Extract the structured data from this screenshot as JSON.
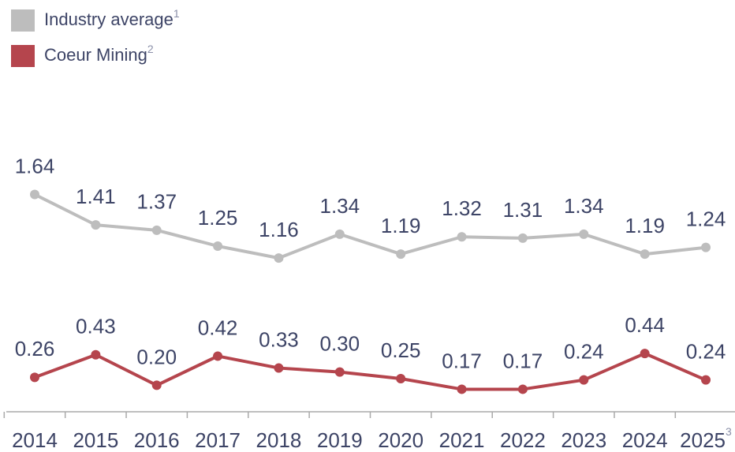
{
  "chart_data": {
    "type": "line",
    "categories": [
      "2014",
      "2015",
      "2016",
      "2017",
      "2018",
      "2019",
      "2020",
      "2021",
      "2022",
      "2023",
      "2024",
      "2025"
    ],
    "last_category_note": "3",
    "series": [
      {
        "name": "Industry average",
        "note": "1",
        "color": "#bdbdbd",
        "values": [
          1.64,
          1.41,
          1.37,
          1.25,
          1.16,
          1.34,
          1.19,
          1.32,
          1.31,
          1.34,
          1.19,
          1.24
        ],
        "value_labels": [
          "1.64",
          "1.41",
          "1.37",
          "1.25",
          "1.16",
          "1.34",
          "1.19",
          "1.32",
          "1.31",
          "1.34",
          "1.19",
          "1.24"
        ]
      },
      {
        "name": "Coeur Mining",
        "note": "2",
        "color": "#b5454d",
        "values": [
          0.26,
          0.43,
          0.2,
          0.42,
          0.33,
          0.3,
          0.25,
          0.17,
          0.17,
          0.24,
          0.44,
          0.24
        ],
        "value_labels": [
          "0.26",
          "0.43",
          "0.20",
          "0.42",
          "0.33",
          "0.30",
          "0.25",
          "0.17",
          "0.17",
          "0.24",
          "0.44",
          "0.24"
        ]
      }
    ]
  }
}
